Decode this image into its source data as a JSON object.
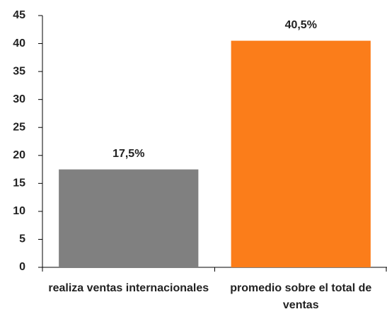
{
  "chart_data": {
    "type": "bar",
    "categories": [
      "realiza ventas internacionales",
      "promedio sobre el total de ventas"
    ],
    "values": [
      17.5,
      40.5
    ],
    "value_labels": [
      "17,5%",
      "40,5%"
    ],
    "colors": [
      "#808080",
      "#fb7d1a"
    ],
    "ylim": [
      0,
      45
    ],
    "yticks": [
      0,
      5,
      10,
      15,
      20,
      25,
      30,
      35,
      40,
      45
    ],
    "grid": false
  }
}
